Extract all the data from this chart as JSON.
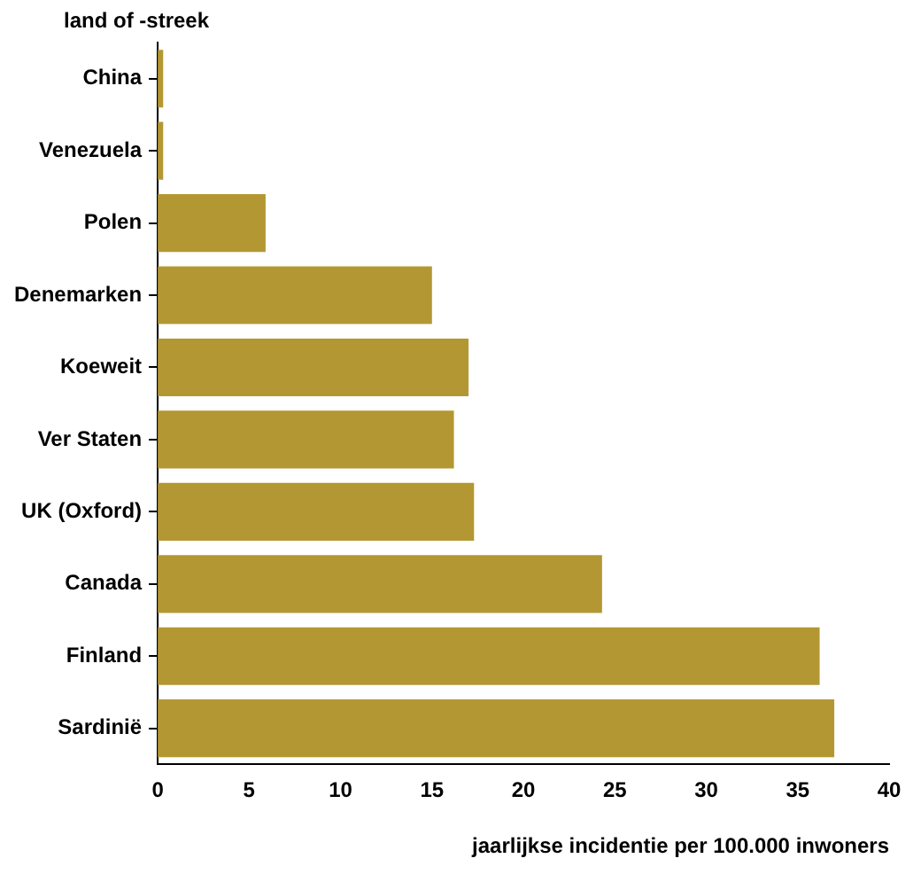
{
  "chart_data": {
    "type": "bar",
    "orientation": "horizontal",
    "ylabel": "land of -streek",
    "xlabel": "jaarlijkse incidentie per 100.000 inwoners",
    "categories": [
      "China",
      "Venezuela",
      "Polen",
      "Denemarken",
      "Koeweit",
      "Ver Staten",
      "UK (Oxford)",
      "Canada",
      "Finland",
      "Sardinië"
    ],
    "values": [
      0.3,
      0.3,
      5.9,
      15.0,
      17.0,
      16.2,
      17.3,
      24.3,
      36.2,
      37.0
    ],
    "color": "#b39733",
    "xlim": [
      0,
      40
    ],
    "xticks": [
      0,
      5,
      10,
      15,
      20,
      25,
      30,
      35,
      40
    ],
    "grid": false,
    "legend": false
  }
}
